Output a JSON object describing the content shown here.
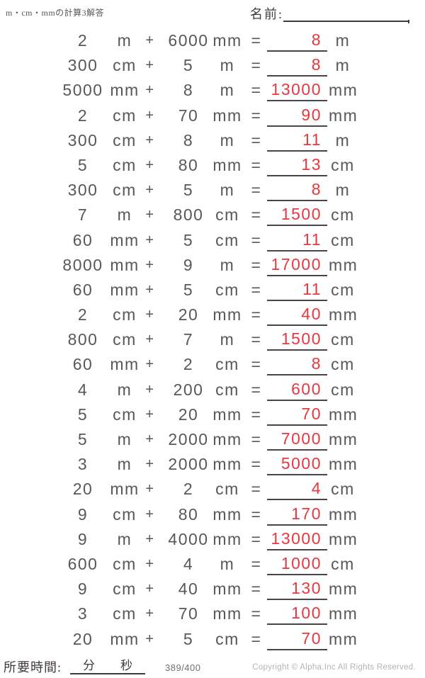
{
  "page": {
    "title": "m・cm・mmの計算3解答",
    "name_label": "名前:",
    "footer": {
      "time_label": "所要時間:",
      "minutes_label": "分",
      "seconds_label": "秒",
      "page_number": "389/400",
      "copyright": "Copyright © Alpha.Inc All Rights Reserved."
    }
  },
  "colors": {
    "body_text": "#595757",
    "answer_red": "#e8383d",
    "rule_line": "#4a4444",
    "label_dark": "#403b3a",
    "copyright_gray": "#b5b3b3"
  },
  "problems": [
    {
      "a": "2",
      "ua": "m",
      "op": "+",
      "b": "6000",
      "ub": "mm",
      "eq": "=",
      "ans": "8",
      "uans": "m"
    },
    {
      "a": "300",
      "ua": "cm",
      "op": "+",
      "b": "5",
      "ub": "m",
      "eq": "=",
      "ans": "8",
      "uans": "m"
    },
    {
      "a": "5000",
      "ua": "mm",
      "op": "+",
      "b": "8",
      "ub": "m",
      "eq": "=",
      "ans": "13000",
      "uans": "mm"
    },
    {
      "a": "2",
      "ua": "cm",
      "op": "+",
      "b": "70",
      "ub": "mm",
      "eq": "=",
      "ans": "90",
      "uans": "mm"
    },
    {
      "a": "300",
      "ua": "cm",
      "op": "+",
      "b": "8",
      "ub": "m",
      "eq": "=",
      "ans": "11",
      "uans": "m"
    },
    {
      "a": "5",
      "ua": "cm",
      "op": "+",
      "b": "80",
      "ub": "mm",
      "eq": "=",
      "ans": "13",
      "uans": "cm"
    },
    {
      "a": "300",
      "ua": "cm",
      "op": "+",
      "b": "5",
      "ub": "m",
      "eq": "=",
      "ans": "8",
      "uans": "m"
    },
    {
      "a": "7",
      "ua": "m",
      "op": "+",
      "b": "800",
      "ub": "cm",
      "eq": "=",
      "ans": "1500",
      "uans": "cm"
    },
    {
      "a": "60",
      "ua": "mm",
      "op": "+",
      "b": "5",
      "ub": "cm",
      "eq": "=",
      "ans": "11",
      "uans": "cm"
    },
    {
      "a": "8000",
      "ua": "mm",
      "op": "+",
      "b": "9",
      "ub": "m",
      "eq": "=",
      "ans": "17000",
      "uans": "mm"
    },
    {
      "a": "60",
      "ua": "mm",
      "op": "+",
      "b": "5",
      "ub": "cm",
      "eq": "=",
      "ans": "11",
      "uans": "cm"
    },
    {
      "a": "2",
      "ua": "cm",
      "op": "+",
      "b": "20",
      "ub": "mm",
      "eq": "=",
      "ans": "40",
      "uans": "mm"
    },
    {
      "a": "800",
      "ua": "cm",
      "op": "+",
      "b": "7",
      "ub": "m",
      "eq": "=",
      "ans": "1500",
      "uans": "cm"
    },
    {
      "a": "60",
      "ua": "mm",
      "op": "+",
      "b": "2",
      "ub": "cm",
      "eq": "=",
      "ans": "8",
      "uans": "cm"
    },
    {
      "a": "4",
      "ua": "m",
      "op": "+",
      "b": "200",
      "ub": "cm",
      "eq": "=",
      "ans": "600",
      "uans": "cm"
    },
    {
      "a": "5",
      "ua": "cm",
      "op": "+",
      "b": "20",
      "ub": "mm",
      "eq": "=",
      "ans": "70",
      "uans": "mm"
    },
    {
      "a": "5",
      "ua": "m",
      "op": "+",
      "b": "2000",
      "ub": "mm",
      "eq": "=",
      "ans": "7000",
      "uans": "mm"
    },
    {
      "a": "3",
      "ua": "m",
      "op": "+",
      "b": "2000",
      "ub": "mm",
      "eq": "=",
      "ans": "5000",
      "uans": "mm"
    },
    {
      "a": "20",
      "ua": "mm",
      "op": "+",
      "b": "2",
      "ub": "cm",
      "eq": "=",
      "ans": "4",
      "uans": "cm"
    },
    {
      "a": "9",
      "ua": "cm",
      "op": "+",
      "b": "80",
      "ub": "mm",
      "eq": "=",
      "ans": "170",
      "uans": "mm"
    },
    {
      "a": "9",
      "ua": "m",
      "op": "+",
      "b": "4000",
      "ub": "mm",
      "eq": "=",
      "ans": "13000",
      "uans": "mm"
    },
    {
      "a": "600",
      "ua": "cm",
      "op": "+",
      "b": "4",
      "ub": "m",
      "eq": "=",
      "ans": "1000",
      "uans": "cm"
    },
    {
      "a": "9",
      "ua": "cm",
      "op": "+",
      "b": "40",
      "ub": "mm",
      "eq": "=",
      "ans": "130",
      "uans": "mm"
    },
    {
      "a": "3",
      "ua": "cm",
      "op": "+",
      "b": "70",
      "ub": "mm",
      "eq": "=",
      "ans": "100",
      "uans": "mm"
    },
    {
      "a": "20",
      "ua": "mm",
      "op": "+",
      "b": "5",
      "ub": "cm",
      "eq": "=",
      "ans": "70",
      "uans": "mm"
    }
  ]
}
